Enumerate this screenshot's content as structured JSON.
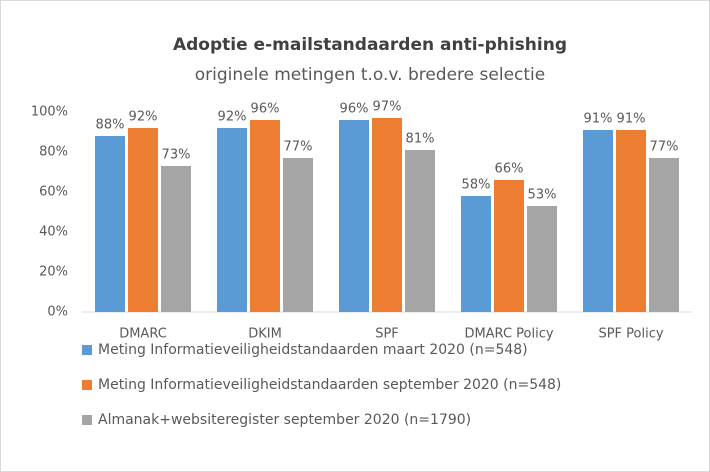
{
  "chart_data": {
    "type": "bar",
    "title": "Adoptie e-mailstandaarden anti-phishing",
    "subtitle": "originele metingen t.o.v. bredere selectie",
    "categories": [
      "DMARC",
      "DKIM",
      "SPF",
      "DMARC Policy",
      "SPF Policy"
    ],
    "series": [
      {
        "name": "Meting Informatieveiligheidstandaarden maart 2020 (n=548)",
        "color": "#5b9bd5",
        "values": [
          88,
          92,
          96,
          58,
          91
        ],
        "value_labels": [
          "88%",
          "92%",
          "96%",
          "58%",
          "91%"
        ]
      },
      {
        "name": "Meting Informatieveiligheidstandaarden september 2020 (n=548)",
        "color": "#ed7d31",
        "values": [
          92,
          96,
          97,
          66,
          91
        ],
        "value_labels": [
          "92%",
          "96%",
          "97%",
          "66%",
          "91%"
        ]
      },
      {
        "name": "Almanak+websiteregister september 2020 (n=1790)",
        "color": "#a5a5a5",
        "values": [
          73,
          77,
          81,
          53,
          77
        ],
        "value_labels": [
          "73%",
          "77%",
          "81%",
          "53%",
          "77%"
        ]
      }
    ],
    "ylim": [
      0,
      100
    ],
    "yticks": [
      {
        "value": 0,
        "label": "0%"
      },
      {
        "value": 20,
        "label": "20%"
      },
      {
        "value": 40,
        "label": "40%"
      },
      {
        "value": 60,
        "label": "60%"
      },
      {
        "value": 80,
        "label": "80%"
      },
      {
        "value": 100,
        "label": "100%"
      }
    ],
    "grid": false
  }
}
